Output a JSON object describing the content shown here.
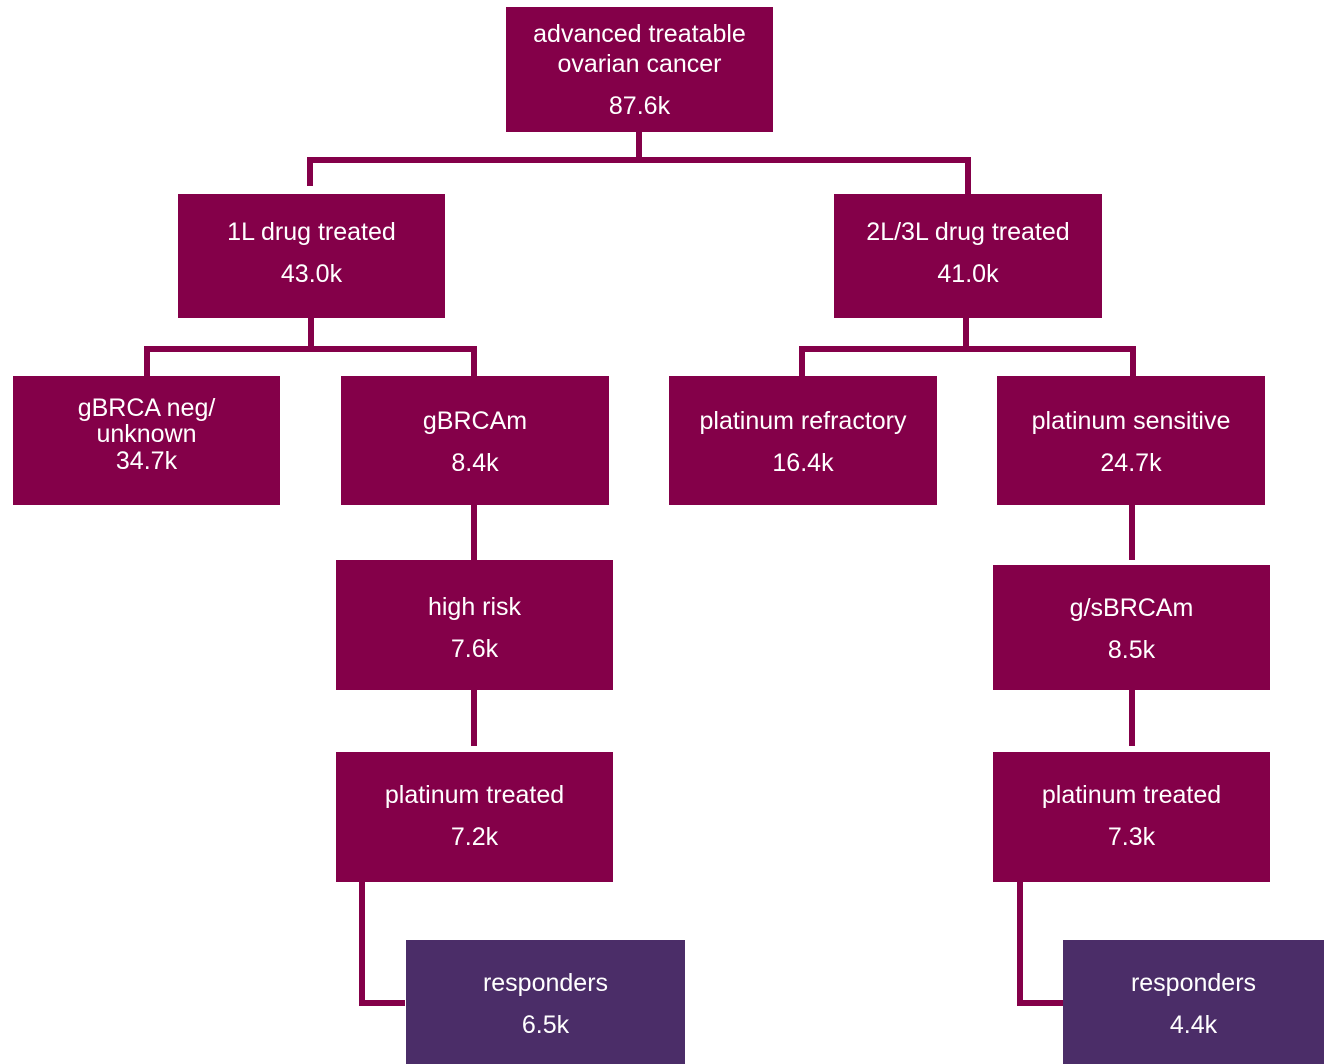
{
  "colors": {
    "primary_box": "#840049",
    "result_box": "#4b2d68",
    "connector": "#840049"
  },
  "nodes": {
    "root": {
      "label": "advanced treatable\novarian cancer",
      "value": "87.6k"
    },
    "first_line": {
      "label": "1L drug treated",
      "value": "43.0k"
    },
    "second_third_line": {
      "label": "2L/3L drug treated",
      "value": "41.0k"
    },
    "gbrca_neg": {
      "label": "gBRCA neg/\nunknown",
      "value": "34.7k"
    },
    "gbrcam": {
      "label": "gBRCAm",
      "value": "8.4k"
    },
    "plat_refractory": {
      "label": "platinum refractory",
      "value": "16.4k"
    },
    "plat_sensitive": {
      "label": "platinum sensitive",
      "value": "24.7k"
    },
    "high_risk": {
      "label": "high risk",
      "value": "7.6k"
    },
    "gs_brcam": {
      "label": "g/sBRCAm",
      "value": "8.5k"
    },
    "plat_treated_left": {
      "label": "platinum treated",
      "value": "7.2k"
    },
    "plat_treated_right": {
      "label": "platinum treated",
      "value": "7.3k"
    },
    "responders_left": {
      "label": "responders",
      "value": "6.5k"
    },
    "responders_right": {
      "label": "responders",
      "value": "4.4k"
    }
  }
}
